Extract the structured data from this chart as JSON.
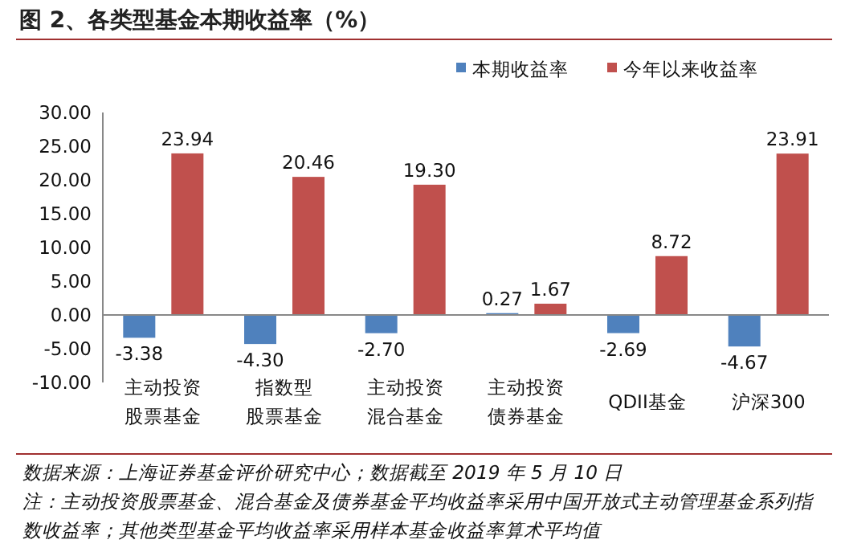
{
  "chart_data": {
    "type": "bar",
    "title": "图 2、各类型基金本期收益率（%）",
    "categories": [
      "主动投资股票基金",
      "指数型股票基金",
      "主动投资混合基金",
      "主动投资债券基金",
      "QDII基金",
      "沪深300"
    ],
    "series": [
      {
        "name": "本期收益率",
        "color": "#4f81bd",
        "values": [
          -3.38,
          -4.3,
          -2.7,
          0.27,
          -2.69,
          -4.67
        ],
        "value_labels": [
          "-3.38",
          "-4.30",
          "-2.70",
          "0.27",
          "-2.69",
          "-4.67"
        ]
      },
      {
        "name": "今年以来收益率",
        "color": "#c0504d",
        "values": [
          23.94,
          20.46,
          19.3,
          1.67,
          8.72,
          23.91
        ],
        "value_labels": [
          "23.94",
          "20.46",
          "19.30",
          "1.67",
          "8.72",
          "23.91"
        ]
      }
    ],
    "ylim": [
      -10,
      30
    ],
    "yticks": [
      {
        "value": -10,
        "label": "-10.00"
      },
      {
        "value": -5,
        "label": "-5.00"
      },
      {
        "value": 0,
        "label": "0.00"
      },
      {
        "value": 5,
        "label": "5.00"
      },
      {
        "value": 10,
        "label": "10.00"
      },
      {
        "value": 15,
        "label": "15.00"
      },
      {
        "value": 20,
        "label": "20.00"
      },
      {
        "value": 25,
        "label": "25.00"
      },
      {
        "value": 30,
        "label": "30.00"
      }
    ],
    "legend": "top right",
    "annotations": [
      "数据来源：上海证券基金评价研究中心；数据截至 2019 年 5 月 10 日",
      "注：主动投资股票基金、混合基金及债券基金平均收益率采用中国开放式主动管理基金系列指数收益率；其他类型基金平均收益率采用样本基金收益率算术平均值"
    ]
  }
}
